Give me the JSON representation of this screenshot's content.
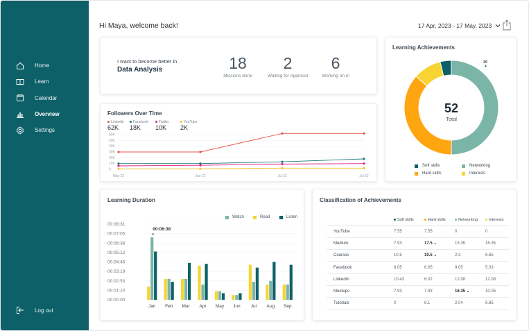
{
  "colors": {
    "teal_dark": "#0e6068",
    "sage": "#7bb5a7",
    "orange": "#ffa50f",
    "yellow": "#f7d432",
    "linkedin": "#e8574a",
    "facebook": "#1a7a76",
    "twitter": "#e0208c",
    "youtube": "#f4c52d"
  },
  "sidebar": {
    "items": [
      {
        "label": "Home",
        "icon": "home-icon"
      },
      {
        "label": "Learn",
        "icon": "book-icon"
      },
      {
        "label": "Calendar",
        "icon": "calendar-icon"
      },
      {
        "label": "Overview",
        "icon": "bar-chart-icon"
      },
      {
        "label": "Settings",
        "icon": "gear-icon"
      }
    ],
    "active": "Overview",
    "logout": "Log out"
  },
  "header": {
    "greeting": "Hi Maya, welcome back!",
    "date_range": "17 Apr, 2023 - 17 May, 2023"
  },
  "goal": {
    "prefix": "I want to become better in",
    "topic": "Data Analysis",
    "stats": [
      {
        "value": "18",
        "label": "Missions done"
      },
      {
        "value": "2",
        "label": "Waiting for Approval"
      },
      {
        "value": "6",
        "label": "Working on in"
      }
    ]
  },
  "followers": {
    "title": "Followers Over Time",
    "legend": [
      {
        "name": "LinkedIn",
        "value": "62K"
      },
      {
        "name": "Facebook",
        "value": "18K"
      },
      {
        "name": "Twitter",
        "value": "10K"
      },
      {
        "name": "YouTube",
        "value": "2K"
      }
    ]
  },
  "achievements": {
    "title": "Learning Achievements",
    "total": "52",
    "total_label": "Total",
    "legend": [
      "Soft skills",
      "Networking",
      "Hard skills",
      "Interests"
    ]
  },
  "duration": {
    "title": "Learning Duration",
    "legend": [
      "Watch",
      "Read",
      "Listen"
    ],
    "peak_label": "00:06:38"
  },
  "classification": {
    "title": "Classification of Achievements",
    "columns": [
      "Soft skills",
      "Hard skills",
      "Networking",
      "Interests"
    ],
    "rows": [
      {
        "name": "YouTube",
        "cells": [
          "7.55",
          "7.55",
          "0",
          "0"
        ]
      },
      {
        "name": "Medium",
        "cells": [
          "7.93",
          "17.5",
          "15.35",
          "15.35"
        ]
      },
      {
        "name": "Courses",
        "cells": [
          "10.5",
          "10.5",
          "2.3",
          "6.65"
        ]
      },
      {
        "name": "Facebook",
        "cells": [
          "6.05",
          "6.05",
          "9.05",
          "5.03"
        ]
      },
      {
        "name": "LinkedIn",
        "cells": [
          "10.43",
          "6.02",
          "12.08",
          "12.08"
        ]
      },
      {
        "name": "Meetups",
        "cells": [
          "7.93",
          "7.93",
          "16.35",
          "10.05"
        ]
      },
      {
        "name": "Tutorials",
        "cells": [
          "0",
          "6.1",
          "2.04",
          "6.85"
        ]
      }
    ]
  },
  "chart_data": [
    {
      "type": "line",
      "title": "Followers Over Time",
      "x": [
        "May 22",
        "Jun 22",
        "Jul 22",
        "Jul 22"
      ],
      "yticks": [
        "60K",
        "50K",
        "40K",
        "30K",
        "20K",
        "10K",
        "0"
      ],
      "ylim": [
        0,
        60
      ],
      "series": [
        {
          "name": "LinkedIn",
          "values": [
            30,
            30,
            62,
            62
          ]
        },
        {
          "name": "Facebook",
          "values": [
            10,
            10,
            13,
            18
          ]
        },
        {
          "name": "Twitter",
          "values": [
            6,
            7,
            9,
            10
          ]
        },
        {
          "name": "YouTube",
          "values": [
            1,
            1,
            2,
            2
          ]
        }
      ]
    },
    {
      "type": "pie",
      "title": "Learning Achievements",
      "categories": [
        "Soft skills",
        "Networking",
        "Hard skills",
        "Interests"
      ],
      "values": [
        2,
        26,
        19,
        5
      ],
      "data_labels": [
        "26"
      ],
      "total": "52"
    },
    {
      "type": "bar",
      "title": "Learning Duration",
      "categories": [
        "Jan",
        "Feb",
        "Mar",
        "Apr",
        "May",
        "Jun",
        "Jul",
        "Aug",
        "Sep"
      ],
      "yticks": [
        "00:08:31",
        "00:07:05",
        "00:06:38",
        "00:05:12",
        "00:04:46",
        "00:03:19",
        "00:02:53",
        "00:01:10",
        "00:00:00"
      ],
      "ylim": [
        0,
        8
      ],
      "series": [
        {
          "name": "Watch",
          "values": [
            6.6,
            2.2,
            2.2,
            1.6,
            0.9,
            0.5,
            1.9,
            2.0,
            1.6
          ]
        },
        {
          "name": "Read",
          "values": [
            1.4,
            2.2,
            2.2,
            3.6,
            0.9,
            0.5,
            3.7,
            1.6,
            1.6
          ]
        },
        {
          "name": "Listen",
          "values": [
            5.1,
            1.9,
            3.9,
            3.8,
            0.7,
            0.7,
            3.4,
            4.0,
            3.7
          ]
        }
      ],
      "annotations": [
        "00:06:38"
      ]
    }
  ]
}
